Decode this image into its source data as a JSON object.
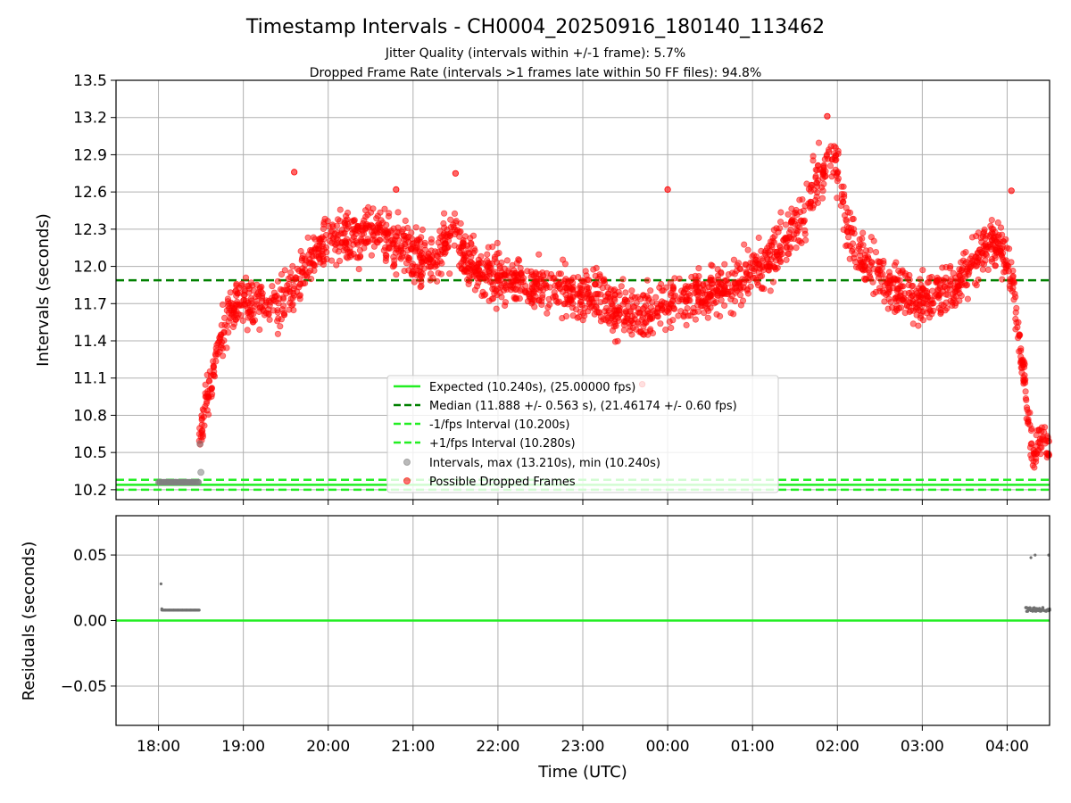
{
  "chart_data": {
    "title": "Timestamp Intervals - CH0004_20250916_180140_113462",
    "subtitle_lines": [
      "Jitter Quality (intervals within +/-1 frame): 5.7%",
      "Dropped Frame Rate (intervals >1 frames late within 50 FF files): 94.8%"
    ],
    "xlabel": "Time (UTC)",
    "x_ticks": [
      "18:00",
      "19:00",
      "20:00",
      "21:00",
      "22:00",
      "23:00",
      "00:00",
      "01:00",
      "02:00",
      "03:00",
      "04:00"
    ],
    "x_range_hours": [
      -0.5,
      10.5
    ],
    "panels": [
      {
        "type": "scatter",
        "ylabel": "Intervals (seconds)",
        "ylim": [
          10.12,
          13.5
        ],
        "y_ticks": [
          "10.2",
          "10.5",
          "10.8",
          "11.1",
          "11.4",
          "11.7",
          "12.0",
          "12.3",
          "12.6",
          "12.9",
          "13.2",
          "13.5"
        ],
        "hlines": [
          {
            "name": "Expected (10.240s), (25.00000 fps)",
            "y": 10.24,
            "color": "#22ee22",
            "style": "solid"
          },
          {
            "name": "Median (11.888 +/- 0.563 s), (21.46174 +/- 0.60 fps)",
            "y": 11.888,
            "color": "#008000",
            "style": "dashed"
          },
          {
            "name": "-1/fps Interval (10.200s)",
            "y": 10.2,
            "color": "#22ee22",
            "style": "dashed"
          },
          {
            "name": "+1/fps Interval (10.280s)",
            "y": 10.28,
            "color": "#22ee22",
            "style": "dashed"
          }
        ],
        "series": [
          {
            "name": "Intervals, max (13.210s), min (10.240s)",
            "color": "#808080",
            "points": [
              [
                0.02,
                10.26
              ],
              [
                0.1,
                10.26
              ],
              [
                0.2,
                10.26
              ],
              [
                0.3,
                10.26
              ],
              [
                0.4,
                10.26
              ],
              [
                0.47,
                10.26
              ],
              [
                0.49,
                10.57
              ],
              [
                0.5,
                10.34
              ]
            ]
          },
          {
            "name": "Possible Dropped Frames",
            "color": "#ff0000",
            "trend": [
              [
                0.48,
                10.6
              ],
              [
                0.55,
                10.9
              ],
              [
                0.62,
                11.05
              ],
              [
                0.7,
                11.3
              ],
              [
                0.8,
                11.55
              ],
              [
                0.9,
                11.7
              ],
              [
                1.0,
                11.72
              ],
              [
                1.2,
                11.7
              ],
              [
                1.4,
                11.68
              ],
              [
                1.6,
                11.85
              ],
              [
                1.8,
                12.05
              ],
              [
                2.0,
                12.2
              ],
              [
                2.2,
                12.2
              ],
              [
                2.4,
                12.25
              ],
              [
                2.6,
                12.28
              ],
              [
                2.8,
                12.2
              ],
              [
                3.0,
                12.1
              ],
              [
                3.2,
                12.05
              ],
              [
                3.4,
                12.15
              ],
              [
                3.5,
                12.3
              ],
              [
                3.6,
                12.1
              ],
              [
                3.8,
                11.95
              ],
              [
                4.0,
                11.92
              ],
              [
                4.3,
                11.88
              ],
              [
                4.6,
                11.82
              ],
              [
                4.8,
                11.8
              ],
              [
                5.0,
                11.75
              ],
              [
                5.2,
                11.75
              ],
              [
                5.4,
                11.62
              ],
              [
                5.6,
                11.6
              ],
              [
                5.8,
                11.65
              ],
              [
                6.0,
                11.7
              ],
              [
                6.2,
                11.75
              ],
              [
                6.4,
                11.78
              ],
              [
                6.6,
                11.82
              ],
              [
                6.8,
                11.85
              ],
              [
                7.0,
                11.95
              ],
              [
                7.2,
                12.05
              ],
              [
                7.4,
                12.2
              ],
              [
                7.6,
                12.4
              ],
              [
                7.8,
                12.75
              ],
              [
                7.9,
                12.9
              ],
              [
                8.0,
                12.8
              ],
              [
                8.1,
                12.4
              ],
              [
                8.2,
                12.15
              ],
              [
                8.4,
                12.0
              ],
              [
                8.6,
                11.85
              ],
              [
                8.8,
                11.8
              ],
              [
                9.0,
                11.72
              ],
              [
                9.2,
                11.8
              ],
              [
                9.4,
                11.85
              ],
              [
                9.6,
                12.05
              ],
              [
                9.8,
                12.2
              ],
              [
                9.95,
                12.15
              ],
              [
                10.05,
                11.95
              ],
              [
                10.12,
                11.55
              ],
              [
                10.2,
                11.1
              ],
              [
                10.25,
                10.75
              ],
              [
                10.3,
                10.45
              ],
              [
                10.4,
                10.6
              ],
              [
                10.5,
                10.55
              ]
            ],
            "spread": 0.2,
            "highlights": [
              [
                2.8,
                12.62
              ],
              [
                3.5,
                12.75
              ],
              [
                6.0,
                12.62
              ],
              [
                7.88,
                13.21
              ],
              [
                5.7,
                11.05
              ],
              [
                1.6,
                12.76
              ],
              [
                10.05,
                12.61
              ]
            ]
          }
        ]
      },
      {
        "type": "scatter",
        "ylabel": "Residuals (seconds)",
        "ylim": [
          -0.08,
          0.08
        ],
        "y_ticks": [
          "−0.05",
          "0.00",
          "0.05"
        ],
        "hlines": [
          {
            "name": "zero",
            "y": 0.0,
            "color": "#22ee22",
            "style": "solid"
          }
        ],
        "series": [
          {
            "name": "residuals",
            "color": "#808080",
            "points": [
              [
                0.03,
                0.028
              ],
              [
                0.04,
                0.009
              ],
              [
                0.08,
                0.008
              ],
              [
                0.13,
                0.008
              ],
              [
                0.18,
                0.008
              ],
              [
                0.23,
                0.008
              ],
              [
                0.28,
                0.008
              ],
              [
                0.33,
                0.008
              ],
              [
                0.38,
                0.008
              ],
              [
                0.43,
                0.008
              ],
              [
                0.48,
                0.008
              ],
              [
                10.23,
                0.007
              ],
              [
                10.27,
                0.008
              ],
              [
                10.31,
                0.009
              ],
              [
                10.35,
                0.008
              ],
              [
                10.39,
                0.008
              ],
              [
                10.46,
                0.007
              ],
              [
                10.5,
                0.009
              ],
              [
                10.28,
                0.048
              ],
              [
                10.33,
                0.05
              ],
              [
                10.49,
                0.05
              ]
            ]
          }
        ]
      }
    ],
    "legend": {
      "position": "lower-center",
      "entries": [
        "Expected (10.240s), (25.00000 fps)",
        "Median (11.888 +/- 0.563 s), (21.46174 +/- 0.60 fps)",
        "-1/fps Interval (10.200s)",
        "+1/fps Interval (10.280s)",
        "Intervals, max (13.210s), min (10.240s)",
        "Possible Dropped Frames"
      ]
    }
  }
}
